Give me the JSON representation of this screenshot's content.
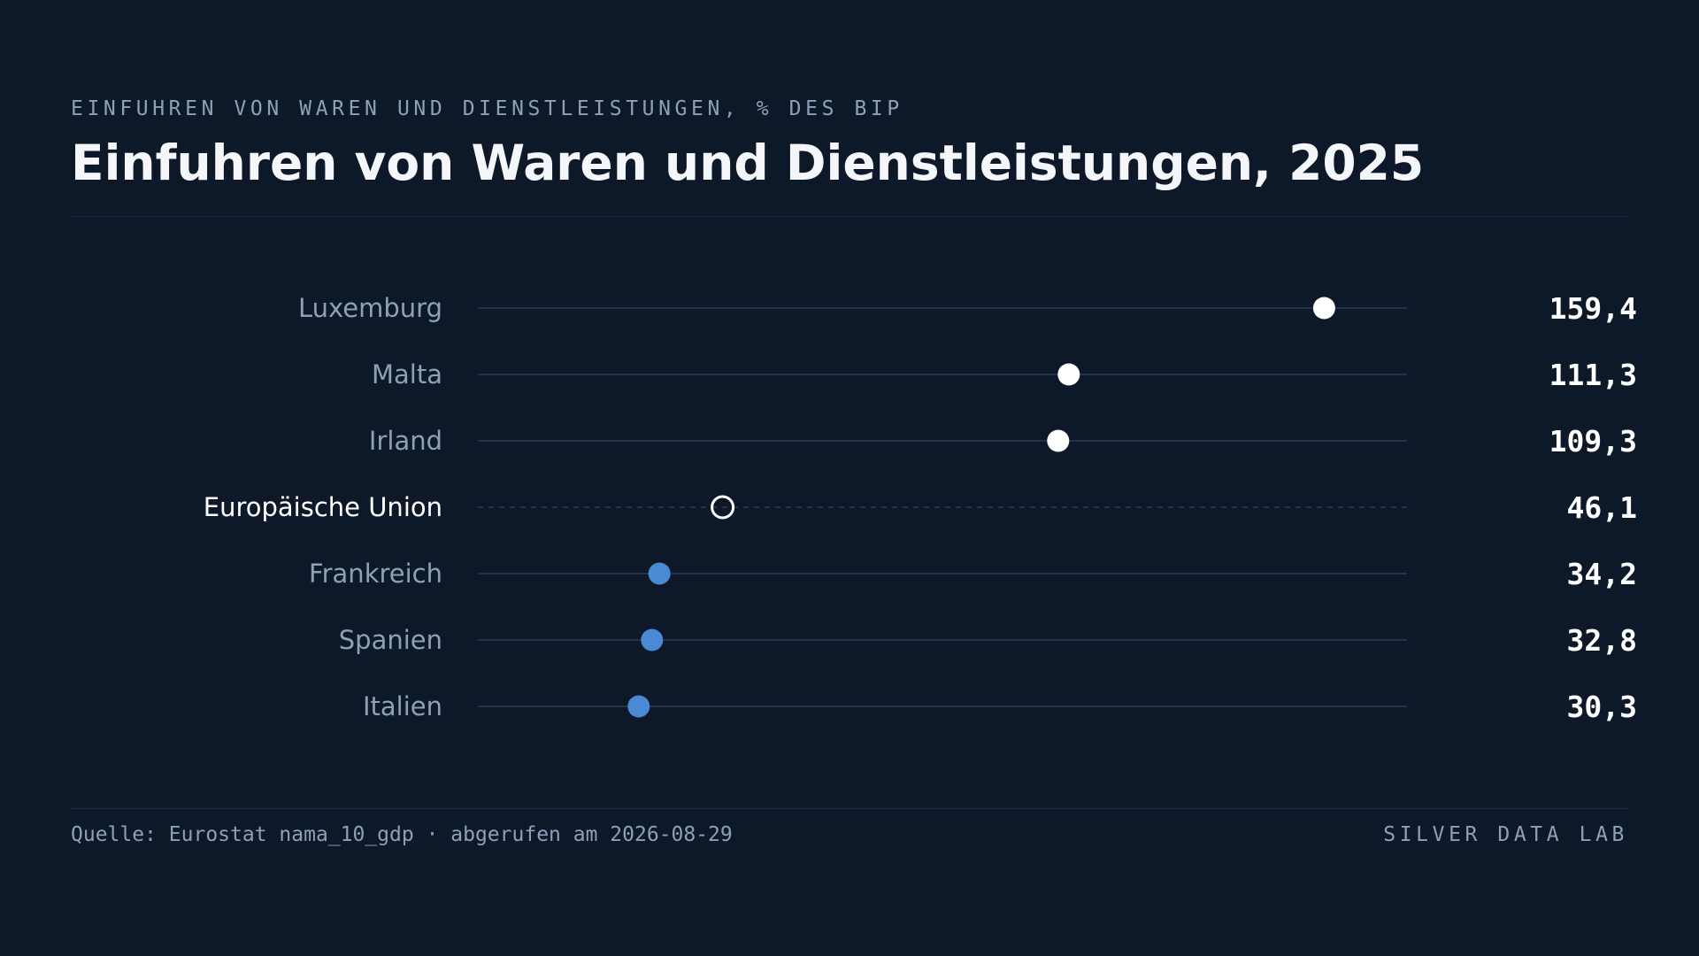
{
  "header": {
    "eyebrow": "EINFUHREN VON WAREN UND DIENSTLEISTUNGEN, % DES BIP",
    "title": "Einfuhren von Waren und Dienstleistungen, 2025"
  },
  "footer": {
    "source": "Quelle: Eurostat nama_10_gdp · abgerufen am 2026-08-29",
    "brand": "SILVER DATA LAB"
  },
  "colors": {
    "background": "#0d1929",
    "track": "#223349",
    "label": "#8ea0b8",
    "label_highlight": "#ffffff",
    "value": "#ffffff",
    "dot_top": "#ffffff",
    "dot_low": "#4a8ad4",
    "dot_reference": "#ffffff"
  },
  "chart_data": {
    "type": "dot",
    "title": "Einfuhren von Waren und Dienstleistungen, 2025",
    "unit": "% des BIP",
    "xlim": [
      0,
      175
    ],
    "categories": [
      "Luxemburg",
      "Malta",
      "Irland",
      "Europäische Union",
      "Frankreich",
      "Spanien",
      "Italien"
    ],
    "values": [
      159.4,
      111.3,
      109.3,
      46.1,
      34.2,
      32.8,
      30.3
    ],
    "value_labels": [
      "159,4",
      "111,3",
      "109,3",
      "46,1",
      "34,2",
      "32,8",
      "30,3"
    ],
    "kinds": [
      "top",
      "top",
      "top",
      "reference",
      "low",
      "low",
      "low"
    ]
  }
}
